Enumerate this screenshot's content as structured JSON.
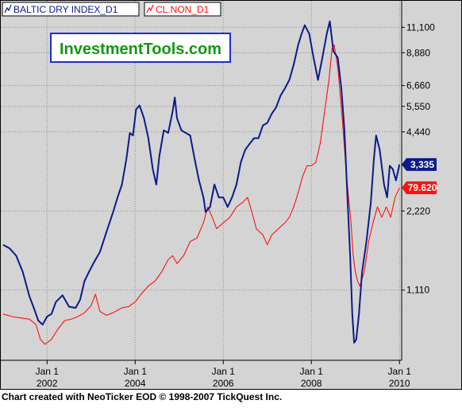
{
  "watermark": "InvestmentTools.com",
  "footer": "Chart created with NeoTicker EOD © 1998-2007 TickQuest Inc.",
  "colors": {
    "plot_bg": "#d4d4d4",
    "grid": "#8c8c8c",
    "series_bdi": "#0b1a8a",
    "series_oil": "#ff1010",
    "watermark_text": "#119911",
    "watermark_border": "#1b2fd0"
  },
  "legend": {
    "icon": "line-chart-icon",
    "placement": "top-left"
  },
  "chart_data": {
    "type": "line",
    "grid": true,
    "x_axis": {
      "range": [
        2000.95,
        2010.05
      ],
      "ticks": [
        {
          "x": 2002.0,
          "month": "Jan 1",
          "year": "2002"
        },
        {
          "x": 2004.0,
          "month": "Jan 1",
          "year": "2004"
        },
        {
          "x": 2006.0,
          "month": "Jan 1",
          "year": "2006"
        },
        {
          "x": 2008.0,
          "month": "Jan 1",
          "year": "2008"
        },
        {
          "x": 2010.0,
          "month": "Jan 1",
          "year": "2010"
        }
      ]
    },
    "y_axis": {
      "scale": "log",
      "side": "right",
      "range": [
        600,
        14000
      ],
      "ticks": [
        {
          "value": 1110,
          "label": "1,110"
        },
        {
          "value": 2220,
          "label": "2,220"
        },
        {
          "value": 4440,
          "label": "4,440"
        },
        {
          "value": 5550,
          "label": "5,550"
        },
        {
          "value": 6660,
          "label": "6,660"
        },
        {
          "value": 8880,
          "label": "8,880"
        },
        {
          "value": 11100,
          "label": "11,100"
        }
      ]
    },
    "series": [
      {
        "name": "BALTIC DRY INDEX_D1",
        "last_label": "3,335",
        "last_value": 3335,
        "points": [
          [
            2001.0,
            1650
          ],
          [
            2001.15,
            1600
          ],
          [
            2001.3,
            1500
          ],
          [
            2001.45,
            1300
          ],
          [
            2001.6,
            1050
          ],
          [
            2001.7,
            950
          ],
          [
            2001.8,
            850
          ],
          [
            2001.9,
            820
          ],
          [
            2002.0,
            880
          ],
          [
            2002.1,
            900
          ],
          [
            2002.2,
            1000
          ],
          [
            2002.35,
            1060
          ],
          [
            2002.5,
            960
          ],
          [
            2002.65,
            950
          ],
          [
            2002.75,
            1020
          ],
          [
            2002.85,
            1200
          ],
          [
            2002.95,
            1300
          ],
          [
            2003.05,
            1400
          ],
          [
            2003.2,
            1550
          ],
          [
            2003.35,
            1850
          ],
          [
            2003.5,
            2200
          ],
          [
            2003.6,
            2500
          ],
          [
            2003.7,
            2800
          ],
          [
            2003.8,
            3500
          ],
          [
            2003.88,
            4400
          ],
          [
            2003.95,
            4300
          ],
          [
            2004.02,
            5400
          ],
          [
            2004.1,
            5600
          ],
          [
            2004.2,
            5000
          ],
          [
            2004.3,
            4200
          ],
          [
            2004.4,
            3200
          ],
          [
            2004.48,
            2800
          ],
          [
            2004.55,
            3600
          ],
          [
            2004.65,
            4500
          ],
          [
            2004.75,
            4400
          ],
          [
            2004.85,
            5300
          ],
          [
            2004.9,
            6000
          ],
          [
            2004.95,
            5000
          ],
          [
            2005.05,
            4500
          ],
          [
            2005.15,
            4400
          ],
          [
            2005.25,
            4300
          ],
          [
            2005.35,
            3500
          ],
          [
            2005.45,
            2900
          ],
          [
            2005.55,
            2500
          ],
          [
            2005.6,
            2200
          ],
          [
            2005.7,
            2300
          ],
          [
            2005.8,
            2800
          ],
          [
            2005.9,
            2500
          ],
          [
            2006.0,
            2500
          ],
          [
            2006.1,
            2300
          ],
          [
            2006.2,
            2500
          ],
          [
            2006.3,
            2800
          ],
          [
            2006.4,
            3400
          ],
          [
            2006.5,
            3800
          ],
          [
            2006.6,
            4000
          ],
          [
            2006.7,
            4200
          ],
          [
            2006.8,
            4200
          ],
          [
            2006.9,
            4700
          ],
          [
            2007.0,
            4800
          ],
          [
            2007.1,
            5200
          ],
          [
            2007.2,
            5500
          ],
          [
            2007.3,
            6100
          ],
          [
            2007.4,
            6500
          ],
          [
            2007.5,
            7000
          ],
          [
            2007.6,
            8000
          ],
          [
            2007.7,
            9500
          ],
          [
            2007.78,
            10500
          ],
          [
            2007.85,
            11300
          ],
          [
            2007.95,
            10500
          ],
          [
            2008.05,
            8500
          ],
          [
            2008.15,
            7000
          ],
          [
            2008.25,
            8500
          ],
          [
            2008.35,
            10500
          ],
          [
            2008.42,
            11700
          ],
          [
            2008.5,
            9000
          ],
          [
            2008.6,
            8500
          ],
          [
            2008.68,
            6500
          ],
          [
            2008.75,
            4500
          ],
          [
            2008.82,
            2500
          ],
          [
            2008.88,
            1500
          ],
          [
            2008.93,
            900
          ],
          [
            2008.97,
            700
          ],
          [
            2009.02,
            720
          ],
          [
            2009.08,
            900
          ],
          [
            2009.15,
            1300
          ],
          [
            2009.25,
            1700
          ],
          [
            2009.35,
            2400
          ],
          [
            2009.42,
            3500
          ],
          [
            2009.47,
            4300
          ],
          [
            2009.55,
            3800
          ],
          [
            2009.65,
            2800
          ],
          [
            2009.72,
            2500
          ],
          [
            2009.78,
            3300
          ],
          [
            2009.85,
            3200
          ],
          [
            2009.92,
            2900
          ],
          [
            2010.0,
            3335
          ]
        ]
      },
      {
        "name": "CL.NON_D1",
        "last_label": "79.620",
        "last_value": 2720,
        "points": [
          [
            2001.0,
            900
          ],
          [
            2001.2,
            880
          ],
          [
            2001.4,
            870
          ],
          [
            2001.6,
            860
          ],
          [
            2001.75,
            820
          ],
          [
            2001.85,
            720
          ],
          [
            2001.95,
            690
          ],
          [
            2002.1,
            720
          ],
          [
            2002.25,
            790
          ],
          [
            2002.4,
            850
          ],
          [
            2002.55,
            860
          ],
          [
            2002.7,
            880
          ],
          [
            2002.85,
            910
          ],
          [
            2003.0,
            970
          ],
          [
            2003.1,
            1070
          ],
          [
            2003.2,
            920
          ],
          [
            2003.35,
            890
          ],
          [
            2003.5,
            910
          ],
          [
            2003.7,
            950
          ],
          [
            2003.85,
            960
          ],
          [
            2004.0,
            1000
          ],
          [
            2004.15,
            1080
          ],
          [
            2004.3,
            1150
          ],
          [
            2004.45,
            1200
          ],
          [
            2004.6,
            1300
          ],
          [
            2004.75,
            1450
          ],
          [
            2004.85,
            1500
          ],
          [
            2004.95,
            1400
          ],
          [
            2005.1,
            1500
          ],
          [
            2005.25,
            1700
          ],
          [
            2005.4,
            1750
          ],
          [
            2005.55,
            2000
          ],
          [
            2005.65,
            2300
          ],
          [
            2005.75,
            2100
          ],
          [
            2005.85,
            1900
          ],
          [
            2006.0,
            2000
          ],
          [
            2006.15,
            2100
          ],
          [
            2006.3,
            2300
          ],
          [
            2006.45,
            2400
          ],
          [
            2006.55,
            2500
          ],
          [
            2006.65,
            2200
          ],
          [
            2006.75,
            1900
          ],
          [
            2006.9,
            1800
          ],
          [
            2007.0,
            1650
          ],
          [
            2007.1,
            1800
          ],
          [
            2007.25,
            1900
          ],
          [
            2007.4,
            2000
          ],
          [
            2007.5,
            2100
          ],
          [
            2007.6,
            2300
          ],
          [
            2007.7,
            2600
          ],
          [
            2007.8,
            3000
          ],
          [
            2007.9,
            3300
          ],
          [
            2008.0,
            3300
          ],
          [
            2008.1,
            3400
          ],
          [
            2008.2,
            4000
          ],
          [
            2008.3,
            5300
          ],
          [
            2008.4,
            7000
          ],
          [
            2008.47,
            9200
          ],
          [
            2008.52,
            9500
          ],
          [
            2008.6,
            7800
          ],
          [
            2008.7,
            5000
          ],
          [
            2008.8,
            3000
          ],
          [
            2008.9,
            2000
          ],
          [
            2008.95,
            1500
          ],
          [
            2009.0,
            1300
          ],
          [
            2009.05,
            1200
          ],
          [
            2009.1,
            1150
          ],
          [
            2009.2,
            1300
          ],
          [
            2009.3,
            1700
          ],
          [
            2009.4,
            2000
          ],
          [
            2009.5,
            2300
          ],
          [
            2009.6,
            2100
          ],
          [
            2009.7,
            2300
          ],
          [
            2009.8,
            2100
          ],
          [
            2009.9,
            2500
          ],
          [
            2010.0,
            2720
          ]
        ]
      }
    ]
  }
}
